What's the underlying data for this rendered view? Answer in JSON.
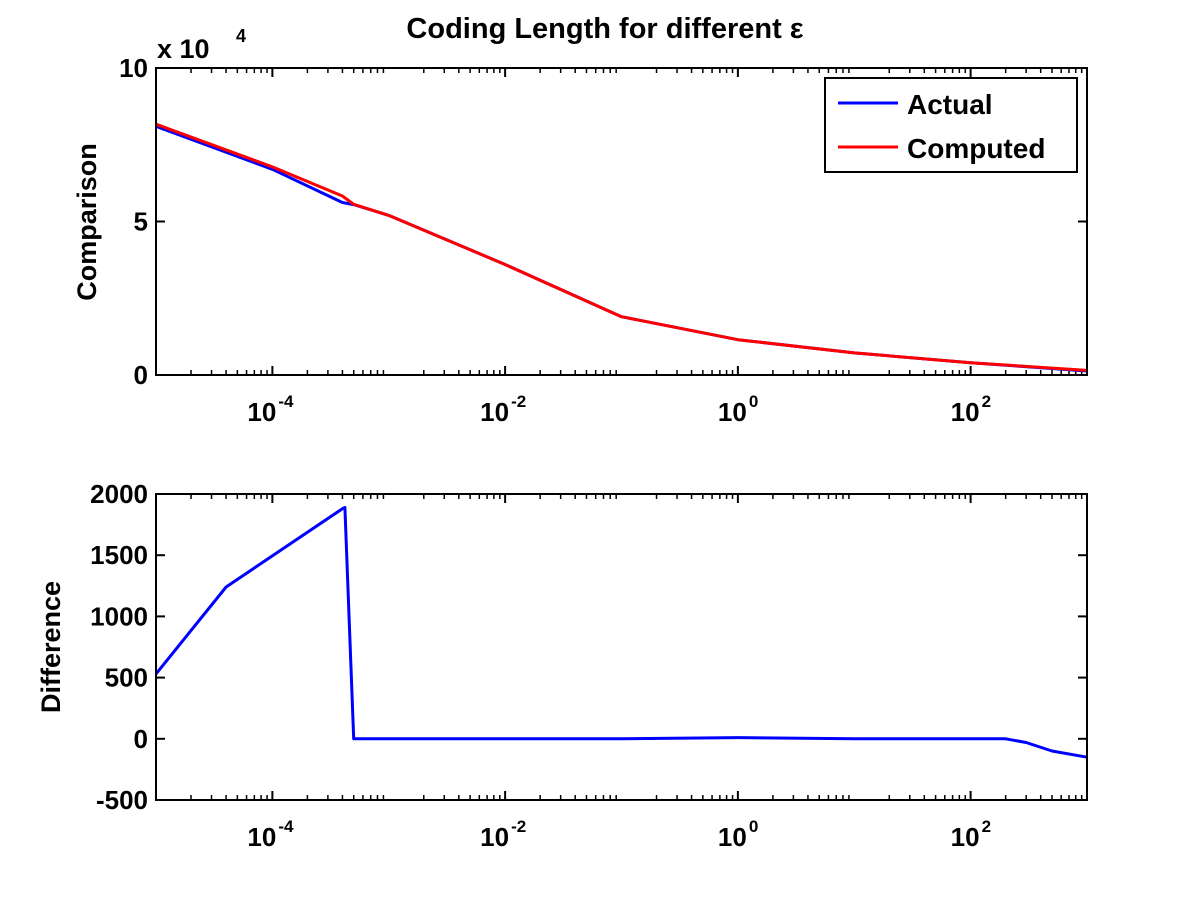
{
  "chart_data": [
    {
      "type": "line",
      "title": "Coding Length for different ε",
      "ylabel": "Comparison",
      "y_multiplier": {
        "base": "x 10",
        "exponent": "4"
      },
      "x_scale": "log",
      "xlim": [
        1e-05,
        1000
      ],
      "ylim": [
        0,
        100000
      ],
      "y_ticks": [
        {
          "value": 0,
          "label": "0"
        },
        {
          "value": 50000,
          "label": "5"
        },
        {
          "value": 100000,
          "label": "10"
        }
      ],
      "x_ticks": [
        {
          "value": 0.0001,
          "base": "10",
          "exp": "-4"
        },
        {
          "value": 0.01,
          "base": "10",
          "exp": "-2"
        },
        {
          "value": 1,
          "base": "10",
          "exp": "0"
        },
        {
          "value": 100,
          "base": "10",
          "exp": "2"
        }
      ],
      "legend": {
        "position": "top-right"
      },
      "grid": false,
      "series": [
        {
          "name": "Actual",
          "color": "#0000ff",
          "points": [
            [
              1e-05,
              81000
            ],
            [
              0.0001,
              67000
            ],
            [
              0.0004,
              56200
            ],
            [
              0.0005,
              55500
            ],
            [
              0.001,
              52000
            ],
            [
              0.01,
              36000
            ],
            [
              0.1,
              19000
            ],
            [
              1,
              11500
            ],
            [
              10,
              7200
            ],
            [
              100,
              4000
            ],
            [
              1000,
              1300
            ]
          ]
        },
        {
          "name": "Computed",
          "color": "#ff0000",
          "points": [
            [
              1e-05,
              81700
            ],
            [
              0.0001,
              67800
            ],
            [
              0.0004,
              58300
            ],
            [
              0.0005,
              55600
            ],
            [
              0.001,
              52000
            ],
            [
              0.01,
              36000
            ],
            [
              0.1,
              19000
            ],
            [
              1,
              11500
            ],
            [
              10,
              7200
            ],
            [
              100,
              4000
            ],
            [
              1000,
              1500
            ]
          ]
        }
      ]
    },
    {
      "type": "line",
      "ylabel": "Difference",
      "x_scale": "log",
      "xlim": [
        1e-05,
        1000
      ],
      "ylim": [
        -500,
        2000
      ],
      "y_ticks": [
        {
          "value": -500,
          "label": "-500"
        },
        {
          "value": 0,
          "label": "0"
        },
        {
          "value": 500,
          "label": "500"
        },
        {
          "value": 1000,
          "label": "1000"
        },
        {
          "value": 1500,
          "label": "1500"
        },
        {
          "value": 2000,
          "label": "2000"
        }
      ],
      "x_ticks": [
        {
          "value": 0.0001,
          "base": "10",
          "exp": "-4"
        },
        {
          "value": 0.01,
          "base": "10",
          "exp": "-2"
        },
        {
          "value": 1,
          "base": "10",
          "exp": "0"
        },
        {
          "value": 100,
          "base": "10",
          "exp": "2"
        }
      ],
      "grid": false,
      "series": [
        {
          "color": "#0000ff",
          "points": [
            [
              1e-05,
              530
            ],
            [
              4e-05,
              1240
            ],
            [
              0.0004,
              1880
            ],
            [
              0.00042,
              1890
            ],
            [
              0.0005,
              0
            ],
            [
              0.001,
              0
            ],
            [
              0.01,
              0
            ],
            [
              0.1,
              0
            ],
            [
              1,
              10
            ],
            [
              10,
              0
            ],
            [
              100,
              0
            ],
            [
              200,
              0
            ],
            [
              300,
              -30
            ],
            [
              500,
              -100
            ],
            [
              1000,
              -150
            ]
          ]
        }
      ]
    }
  ]
}
